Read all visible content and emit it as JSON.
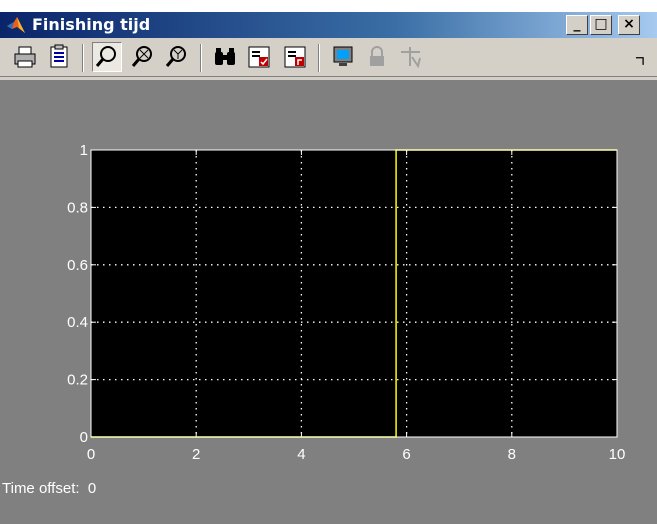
{
  "window": {
    "title": "Finishing tijd",
    "minimize_label": "_",
    "maximize_label": "□",
    "close_label": "×"
  },
  "toolbar": {
    "items": [
      {
        "name": "print-icon"
      },
      {
        "name": "parameters-icon"
      },
      {
        "name": "zoom-icon",
        "pressed": true
      },
      {
        "name": "zoom-x-icon"
      },
      {
        "name": "zoom-y-icon"
      },
      {
        "name": "autoscale-icon"
      },
      {
        "name": "save-axes-settings-icon"
      },
      {
        "name": "restore-axes-settings-icon"
      },
      {
        "name": "floating-scope-icon"
      },
      {
        "name": "lock-axes-icon"
      },
      {
        "name": "signal-selection-icon"
      },
      {
        "name": "more-tools-icon"
      }
    ]
  },
  "status": {
    "label": "Time offset:",
    "value": "0"
  },
  "chart_data": {
    "type": "line",
    "title": "",
    "xlabel": "",
    "ylabel": "",
    "xlim": [
      0,
      10
    ],
    "ylim": [
      0,
      1
    ],
    "xticks": [
      0,
      2,
      4,
      6,
      8,
      10
    ],
    "yticks": [
      0,
      0.2,
      0.4,
      0.6,
      0.8,
      1
    ],
    "xtick_labels": [
      "0",
      "2",
      "4",
      "6",
      "8",
      "10"
    ],
    "ytick_labels": [
      "0",
      "0.2",
      "0.4",
      "0.6",
      "0.8",
      "1"
    ],
    "grid": true,
    "grid_style": "dotted",
    "background_color": "#000000",
    "axes_color": "#ffffff",
    "figure_color": "#808080",
    "series": [
      {
        "color": "#ffff00",
        "x": [
          0,
          5.8,
          5.8,
          10
        ],
        "y": [
          0,
          0,
          1,
          1
        ]
      }
    ]
  }
}
